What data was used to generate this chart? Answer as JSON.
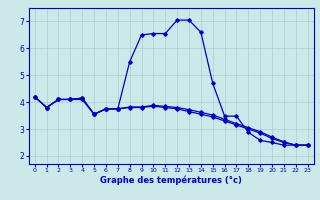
{
  "title": "Graphe des températures (°c)",
  "background_color": "#cce8e8",
  "grid_color": "#aacfcf",
  "line_color": "#0000cc",
  "xlim": [
    -0.5,
    23.5
  ],
  "ylim": [
    1.7,
    7.5
  ],
  "yticks": [
    2,
    3,
    4,
    5,
    6,
    7
  ],
  "xticks": [
    0,
    1,
    2,
    3,
    4,
    5,
    6,
    7,
    8,
    9,
    10,
    11,
    12,
    13,
    14,
    15,
    16,
    17,
    18,
    19,
    20,
    21,
    22,
    23
  ],
  "line1_x": [
    0,
    1,
    2,
    3,
    4,
    5,
    6,
    7,
    8,
    9,
    10,
    11,
    12,
    13,
    14,
    15,
    16,
    17,
    18,
    19,
    20,
    21,
    22,
    23
  ],
  "line1_y": [
    4.2,
    3.8,
    4.1,
    4.1,
    4.15,
    3.55,
    3.75,
    3.75,
    3.8,
    3.8,
    3.85,
    3.8,
    3.75,
    3.65,
    3.55,
    3.45,
    3.3,
    3.15,
    3.0,
    2.85,
    2.65,
    2.5,
    2.4,
    2.4
  ],
  "line2_x": [
    0,
    1,
    2,
    3,
    4,
    5,
    6,
    7,
    8,
    9,
    10,
    11,
    12,
    13,
    14,
    15,
    16,
    17,
    18,
    19,
    20,
    21,
    22,
    23
  ],
  "line2_y": [
    4.2,
    3.8,
    4.1,
    4.1,
    4.1,
    3.55,
    3.75,
    3.75,
    3.82,
    3.82,
    3.88,
    3.84,
    3.8,
    3.72,
    3.62,
    3.52,
    3.36,
    3.2,
    3.05,
    2.9,
    2.7,
    2.52,
    2.4,
    2.4
  ],
  "line3_x": [
    0,
    1,
    2,
    3,
    4,
    5,
    6,
    7,
    8,
    9,
    10,
    11,
    12,
    13,
    14,
    15,
    16,
    17,
    18,
    19,
    20,
    21,
    22,
    23
  ],
  "line3_y": [
    4.2,
    3.8,
    4.1,
    4.1,
    4.15,
    3.55,
    3.75,
    3.75,
    5.5,
    6.5,
    6.55,
    6.55,
    7.05,
    7.05,
    6.6,
    4.7,
    3.48,
    3.48,
    2.88,
    2.58,
    2.5,
    2.4,
    2.4,
    2.4
  ]
}
